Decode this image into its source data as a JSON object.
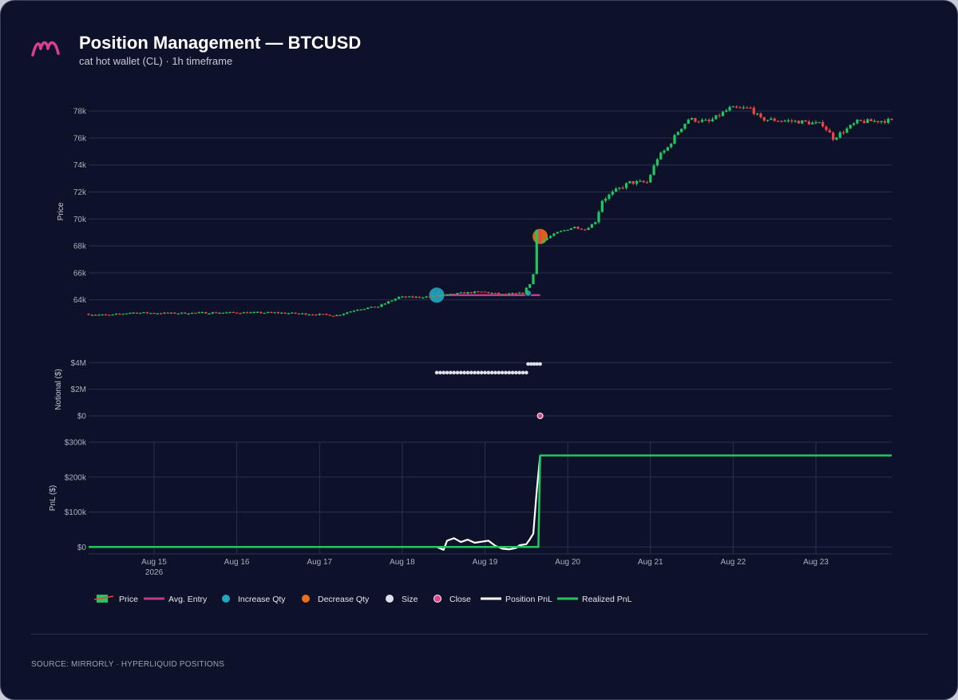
{
  "header": {
    "title": "Position Management — BTCUSD",
    "subtitle": "cat hot wallet (CL) · 1h timeframe"
  },
  "footer": {
    "source": "SOURCE: MIRRORLY · HYPERLIQUID POSITIONS"
  },
  "colors": {
    "background": "#0d1129",
    "grid": "#2a3150",
    "candle_up": "#22c55e",
    "candle_down": "#ef4444",
    "avg_entry": "#c03a8a",
    "increase": "#22a7c0",
    "decrease": "#e8701a",
    "size": "#dde0ec",
    "close": "#e0458f",
    "position_pnl": "#ffffff",
    "realized_pnl": "#22c55e",
    "logo": "#d6408f"
  },
  "icons": {
    "logo": "mirrorly-m-logo"
  },
  "chart_data": {
    "type": "line",
    "x_range": [
      "2026-08-14T05:00",
      "2026-08-23T22:00"
    ],
    "x_ticks": [
      {
        "date": "2026-08-15",
        "label": "Aug 15",
        "sublabel": "2026"
      },
      {
        "date": "2026-08-16",
        "label": "Aug 16",
        "sublabel": ""
      },
      {
        "date": "2026-08-17",
        "label": "Aug 17",
        "sublabel": ""
      },
      {
        "date": "2026-08-18",
        "label": "Aug 18",
        "sublabel": ""
      },
      {
        "date": "2026-08-19",
        "label": "Aug 19",
        "sublabel": ""
      },
      {
        "date": "2026-08-20",
        "label": "Aug 20",
        "sublabel": ""
      },
      {
        "date": "2026-08-21",
        "label": "Aug 21",
        "sublabel": ""
      },
      {
        "date": "2026-08-22",
        "label": "Aug 22",
        "sublabel": ""
      },
      {
        "date": "2026-08-23",
        "label": "Aug 23",
        "sublabel": ""
      }
    ],
    "price_panel": {
      "ylabel": "Price",
      "ylim": [
        62500,
        78600
      ],
      "ticks": [
        {
          "value": 64000,
          "label": "64k"
        },
        {
          "value": 66000,
          "label": "66k"
        },
        {
          "value": 68000,
          "label": "68k"
        },
        {
          "value": 70000,
          "label": "70k"
        },
        {
          "value": 72000,
          "label": "72k"
        },
        {
          "value": 74000,
          "label": "74k"
        },
        {
          "value": 76000,
          "label": "76k"
        },
        {
          "value": 78000,
          "label": "78k"
        }
      ],
      "price_path": [
        [
          "2026-08-14T05:00",
          62950
        ],
        [
          "2026-08-14T12:00",
          62850
        ],
        [
          "2026-08-14T18:00",
          63050
        ],
        [
          "2026-08-15T06:00",
          63000
        ],
        [
          "2026-08-15T18:00",
          63050
        ],
        [
          "2026-08-16T12:00",
          63050
        ],
        [
          "2026-08-16T22:00",
          62950
        ],
        [
          "2026-08-17T06:00",
          62850
        ],
        [
          "2026-08-17T12:00",
          63300
        ],
        [
          "2026-08-17T18:00",
          63500
        ],
        [
          "2026-08-18T00:00",
          64200
        ],
        [
          "2026-08-18T06:00",
          64200
        ],
        [
          "2026-08-18T12:00",
          64300
        ],
        [
          "2026-08-18T18:00",
          64500
        ],
        [
          "2026-08-19T00:00",
          64600
        ],
        [
          "2026-08-19T06:00",
          64400
        ],
        [
          "2026-08-19T12:00",
          64500
        ],
        [
          "2026-08-19T14:00",
          65200
        ],
        [
          "2026-08-19T15:00",
          65900
        ],
        [
          "2026-08-19T16:00",
          69200
        ],
        [
          "2026-08-19T17:00",
          68300
        ],
        [
          "2026-08-19T22:00",
          69000
        ],
        [
          "2026-08-20T03:00",
          69400
        ],
        [
          "2026-08-20T06:00",
          69200
        ],
        [
          "2026-08-20T09:00",
          69800
        ],
        [
          "2026-08-20T11:00",
          71400
        ],
        [
          "2026-08-20T15:00",
          72100
        ],
        [
          "2026-08-20T19:00",
          72700
        ],
        [
          "2026-08-21T00:00",
          72700
        ],
        [
          "2026-08-21T03:00",
          74500
        ],
        [
          "2026-08-21T06:00",
          75300
        ],
        [
          "2026-08-21T09:00",
          76500
        ],
        [
          "2026-08-21T12:00",
          77400
        ],
        [
          "2026-08-21T18:00",
          77200
        ],
        [
          "2026-08-22T00:00",
          78200
        ],
        [
          "2026-08-22T06:00",
          78200
        ],
        [
          "2026-08-22T09:00",
          77400
        ],
        [
          "2026-08-22T15:00",
          77300
        ],
        [
          "2026-08-22T21:00",
          77200
        ],
        [
          "2026-08-23T03:00",
          77000
        ],
        [
          "2026-08-23T06:00",
          76000
        ],
        [
          "2026-08-23T09:00",
          76500
        ],
        [
          "2026-08-23T13:00",
          77200
        ],
        [
          "2026-08-23T22:00",
          77300
        ]
      ],
      "avg_entry": {
        "start": "2026-08-18T10:00",
        "end": "2026-08-19T16:00",
        "value": 64350
      },
      "markers": [
        {
          "kind": "increase",
          "date": "2026-08-18T10:00",
          "price": 64350,
          "size": "large"
        },
        {
          "kind": "increase",
          "date": "2026-08-19T12:30",
          "price": 64500,
          "size": "small"
        },
        {
          "kind": "decrease",
          "date": "2026-08-19T16:00",
          "price": 68700,
          "size": "large"
        }
      ]
    },
    "notional_panel": {
      "ylabel": "Notional ($)",
      "ylim": [
        0,
        4200000
      ],
      "ticks": [
        {
          "value": 0,
          "label": "$0"
        },
        {
          "value": 2000000,
          "label": "$2M"
        },
        {
          "value": 4000000,
          "label": "$4M"
        }
      ],
      "size_segments": [
        {
          "start": "2026-08-18T10:00",
          "end": "2026-08-19T12:00",
          "value": 3250000
        },
        {
          "start": "2026-08-19T12:30",
          "end": "2026-08-19T16:00",
          "value": 3900000
        }
      ],
      "close_point": {
        "date": "2026-08-19T16:00",
        "value": 0
      }
    },
    "pnl_panel": {
      "ylabel": "PnL ($)",
      "ylim": [
        -20000,
        300000
      ],
      "ticks": [
        {
          "value": 0,
          "label": "$0"
        },
        {
          "value": 100000,
          "label": "$100k"
        },
        {
          "value": 200000,
          "label": "$200k"
        },
        {
          "value": 300000,
          "label": "$300k"
        }
      ],
      "series": [
        {
          "name": "Position PnL",
          "points": [
            [
              "2026-08-18T10:00",
              0
            ],
            [
              "2026-08-18T12:00",
              -8000
            ],
            [
              "2026-08-18T13:00",
              18000
            ],
            [
              "2026-08-18T15:00",
              25000
            ],
            [
              "2026-08-18T17:00",
              14000
            ],
            [
              "2026-08-18T19:00",
              21000
            ],
            [
              "2026-08-18T21:00",
              12000
            ],
            [
              "2026-08-18T23:00",
              15000
            ],
            [
              "2026-08-19T01:00",
              18000
            ],
            [
              "2026-08-19T03:00",
              3000
            ],
            [
              "2026-08-19T05:00",
              -5000
            ],
            [
              "2026-08-19T07:00",
              -7000
            ],
            [
              "2026-08-19T09:00",
              -3000
            ],
            [
              "2026-08-19T10:00",
              5000
            ],
            [
              "2026-08-19T12:00",
              8000
            ],
            [
              "2026-08-19T13:00",
              22000
            ],
            [
              "2026-08-19T14:00",
              38000
            ],
            [
              "2026-08-19T15:00",
              160000
            ],
            [
              "2026-08-19T16:00",
              262000
            ]
          ]
        },
        {
          "name": "Realized PnL",
          "points": [
            [
              "2026-08-14T05:00",
              0
            ],
            [
              "2026-08-19T15:30",
              0
            ],
            [
              "2026-08-19T16:00",
              262000
            ],
            [
              "2026-08-23T22:00",
              262000
            ]
          ]
        }
      ]
    },
    "legend": [
      {
        "key": "price",
        "label": "Price"
      },
      {
        "key": "avg_entry",
        "label": "Avg. Entry"
      },
      {
        "key": "increase",
        "label": "Increase Qty"
      },
      {
        "key": "decrease",
        "label": "Decrease Qty"
      },
      {
        "key": "size",
        "label": "Size"
      },
      {
        "key": "close",
        "label": "Close"
      },
      {
        "key": "position_pnl",
        "label": "Position PnL"
      },
      {
        "key": "realized_pnl",
        "label": "Realized PnL"
      }
    ]
  }
}
